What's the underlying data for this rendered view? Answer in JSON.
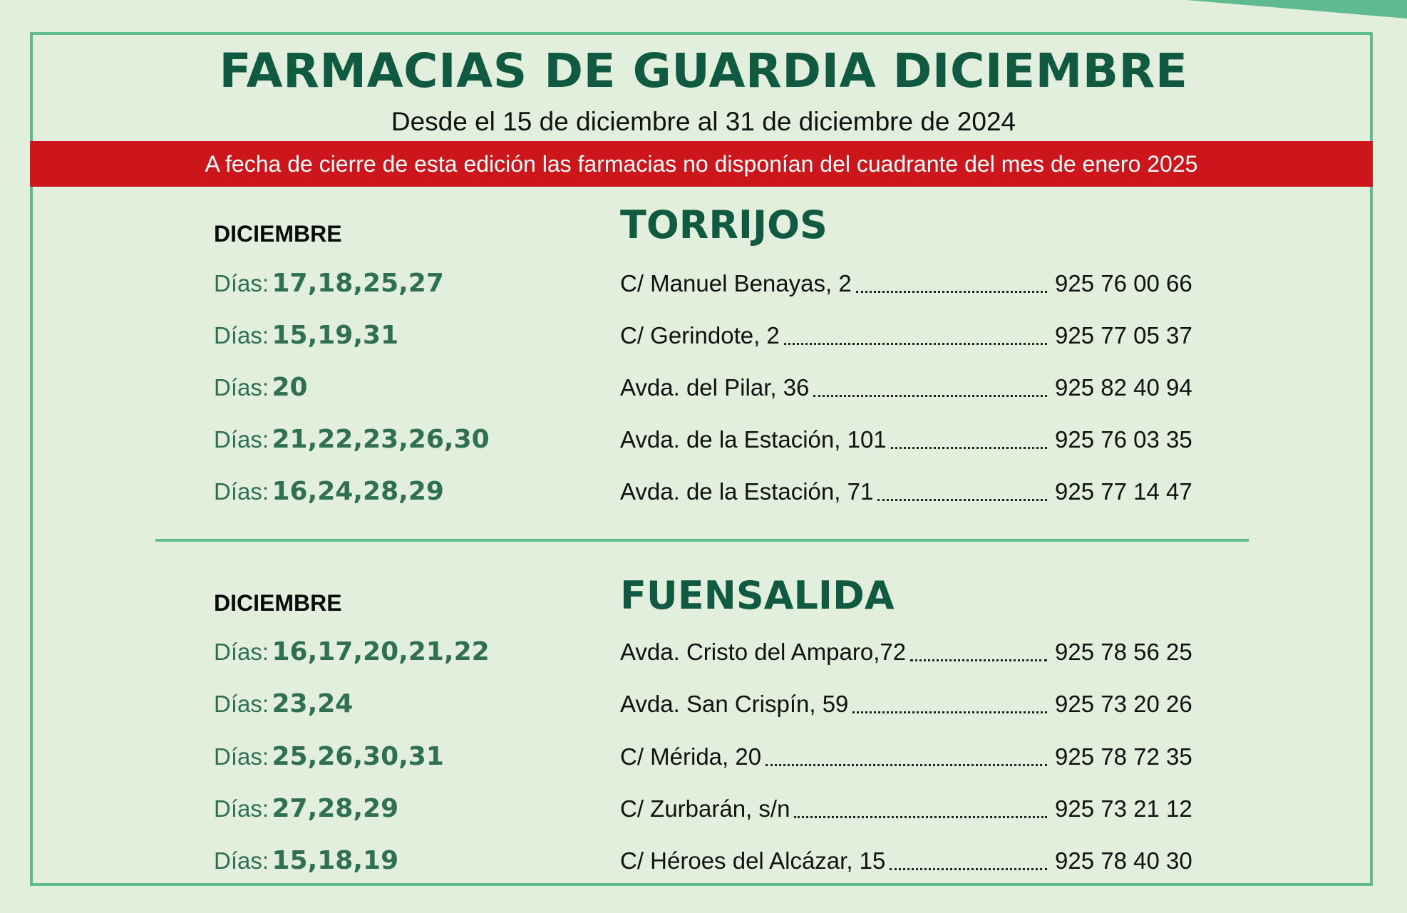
{
  "header": {
    "title": "FARMACIAS DE GUARDIA DICIEMBRE",
    "subtitle": "Desde el 15 de diciembre al 31 de diciembre de 2024",
    "notice": "A fecha de cierre de esta edición las farmacias no disponían del cuadrante del mes de enero 2025"
  },
  "colors": {
    "background": "#e2efdc",
    "title_green": "#0f5a40",
    "accent_green": "#5fbb8f",
    "banner_red": "#cc161c",
    "days_green": "#2f6f52"
  },
  "sections": [
    {
      "month": "DICIEMBRE",
      "town": "TORRIJOS",
      "rows": [
        {
          "days_prefix": "Días:",
          "days": "17,18,25,27",
          "address": "C/ Manuel Benayas, 2",
          "phone": "925 76 00 66"
        },
        {
          "days_prefix": "Días:",
          "days": "15,19,31",
          "address": "C/ Gerindote, 2",
          "phone": "925 77 05 37"
        },
        {
          "days_prefix": "Días:",
          "days": "20",
          "address": "Avda. del Pilar, 36",
          "phone": "925 82 40 94"
        },
        {
          "days_prefix": "Días:",
          "days": "21,22,23,26,30",
          "address": "Avda. de la Estación, 101",
          "phone": "925 76 03 35"
        },
        {
          "days_prefix": "Días:",
          "days": "16,24,28,29",
          "address": "Avda. de la Estación, 71",
          "phone": "925 77 14 47"
        }
      ]
    },
    {
      "month": "DICIEMBRE",
      "town": "FUENSALIDA",
      "rows": [
        {
          "days_prefix": "Días:",
          "days": "16,17,20,21,22",
          "address": "Avda. Cristo del Amparo,72",
          "phone": "925 78 56 25"
        },
        {
          "days_prefix": "Días:",
          "days": "23,24",
          "address": "Avda. San Crispín, 59",
          "phone": "925 73 20 26"
        },
        {
          "days_prefix": "Días:",
          "days": "25,26,30,31",
          "address": "C/ Mérida, 20",
          "phone": "925 78 72 35"
        },
        {
          "days_prefix": "Días:",
          "days": "27,28,29",
          "address": "C/ Zurbarán, s/n",
          "phone": "925 73 21 12"
        },
        {
          "days_prefix": "Días:",
          "days": "15,18,19",
          "address": "C/ Héroes del Alcázar, 15",
          "phone": "925 78 40 30"
        }
      ]
    }
  ]
}
